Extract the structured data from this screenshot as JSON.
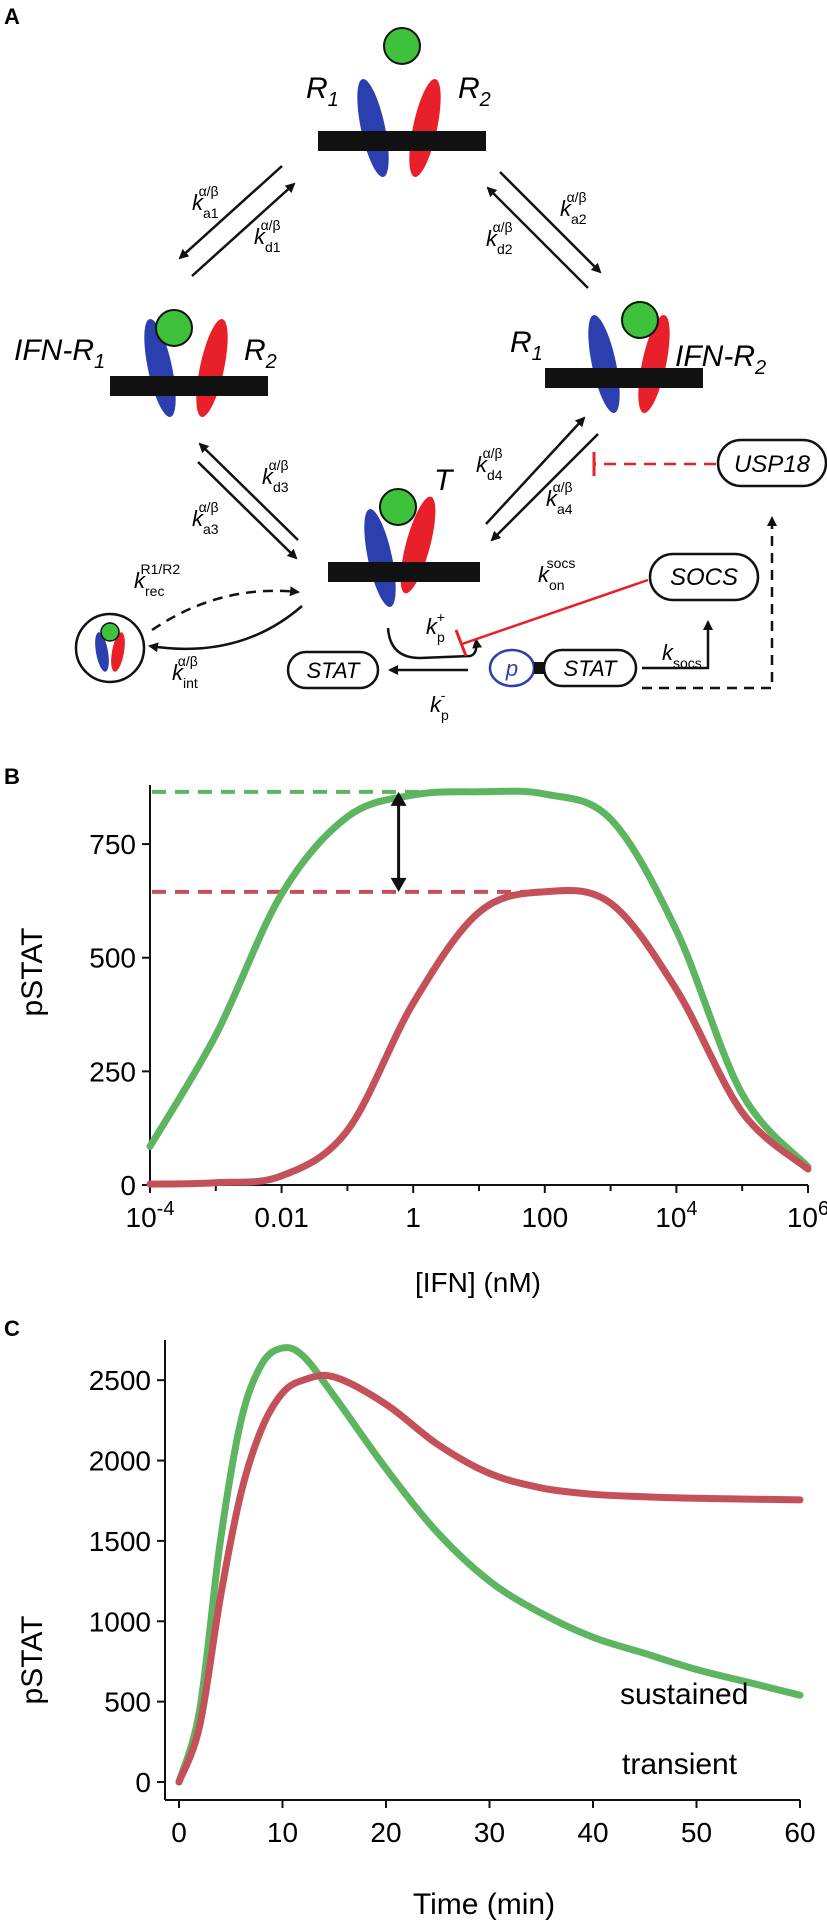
{
  "panel_a": {
    "letter": "A",
    "labels": {
      "r1_top": "R",
      "r1_top_sub": "1",
      "r2_top": "R",
      "r2_top_sub": "2",
      "ifn_r1": "IFN-R",
      "ifn_r1_sub": "1",
      "r2_left": "R",
      "r2_left_sub": "2",
      "r1_right": "R",
      "r1_right_sub": "1",
      "ifn_r2": "IFN-R",
      "ifn_r2_sub": "2",
      "t": "T"
    },
    "rates": {
      "ka1": "k",
      "ka1_sub": "a1",
      "ka1_sup": "α/β",
      "kd1": "k",
      "kd1_sub": "d1",
      "kd1_sup": "α/β",
      "ka2": "k",
      "ka2_sub": "a2",
      "ka2_sup": "α/β",
      "kd2": "k",
      "kd2_sub": "d2",
      "kd2_sup": "α/β",
      "kd3": "k",
      "kd3_sub": "d3",
      "kd3_sup": "α/β",
      "ka3": "k",
      "ka3_sub": "a3",
      "ka3_sup": "α/β",
      "kd4": "k",
      "kd4_sub": "d4",
      "kd4_sup": "α/β",
      "ka4": "k",
      "ka4_sub": "a4",
      "ka4_sup": "α/β",
      "krec": "k",
      "krec_sub": "rec",
      "krec_sup": "R1/R2",
      "kint": "k",
      "kint_sub": "int",
      "kint_sup": "α/β",
      "kon": "k",
      "kon_sub": "on",
      "kon_sup": "socs",
      "kp_plus": "k",
      "kp_plus_sub": "p",
      "kp_plus_sup": "+",
      "kp_minus": "k",
      "kp_minus_sub": "p",
      "kp_minus_sup": "-",
      "ksocs": "k",
      "ksocs_sub": "socs"
    },
    "boxes": {
      "usp18": "USP18",
      "socs": "SOCS",
      "stat_left": "STAT",
      "stat_right": "STAT",
      "p": "p"
    },
    "colors": {
      "r1": "#2c3fae",
      "r2": "#e8202a",
      "ifn": "#3ec23c",
      "membrane": "#111111",
      "inhibit": "#e8202a"
    }
  },
  "panel_b": {
    "letter": "B",
    "ylabel": "pSTAT",
    "xlabel": "[IFN] (nM)",
    "yticks": [
      "0",
      "250",
      "500",
      "750"
    ],
    "xticks": [
      {
        "base": "10",
        "exp": "-4"
      },
      {
        "base": "0.01",
        "exp": ""
      },
      {
        "base": "1",
        "exp": ""
      },
      {
        "base": "100",
        "exp": ""
      },
      {
        "base": "10",
        "exp": "4"
      },
      {
        "base": "10",
        "exp": "6"
      }
    ]
  },
  "panel_c": {
    "letter": "C",
    "ylabel": "pSTAT",
    "xlabel": "Time (min)",
    "yticks": [
      "0",
      "500",
      "1000",
      "1500",
      "2000",
      "2500"
    ],
    "xticks": [
      "0",
      "10",
      "20",
      "30",
      "40",
      "50",
      "60"
    ],
    "label_sustained": "sustained",
    "label_transient": "transient"
  },
  "chart_data": [
    {
      "type": "line",
      "panel": "B",
      "title": "",
      "xlabel": "[IFN] (nM)",
      "ylabel": "pSTAT",
      "xscale": "log",
      "xlim": [
        0.0001,
        1000000
      ],
      "ylim": [
        0,
        880
      ],
      "grid": false,
      "colors": {
        "green": "#5db561",
        "red": "#c4515a"
      },
      "series": [
        {
          "color": "green",
          "x": [
            0.0001,
            0.001,
            0.01,
            0.1,
            1,
            10,
            100,
            1000,
            10000,
            100000,
            1000000
          ],
          "y": [
            85,
            330,
            640,
            810,
            858,
            865,
            860,
            805,
            560,
            200,
            40
          ]
        },
        {
          "color": "red",
          "x": [
            0.0001,
            0.001,
            0.01,
            0.1,
            1,
            10,
            100,
            1000,
            10000,
            100000,
            1000000
          ],
          "y": [
            2,
            5,
            20,
            120,
            400,
            600,
            645,
            620,
            430,
            160,
            35
          ]
        }
      ],
      "reference_lines": [
        {
          "color": "green",
          "y": 865
        },
        {
          "color": "red",
          "y": 645
        }
      ]
    },
    {
      "type": "line",
      "panel": "C",
      "title": "",
      "xlabel": "Time (min)",
      "ylabel": "pSTAT",
      "xlim": [
        0,
        60
      ],
      "ylim": [
        0,
        2750
      ],
      "grid": false,
      "series": [
        {
          "name": "transient",
          "color": "#5db561",
          "x": [
            0,
            2,
            4,
            6,
            8,
            10,
            12,
            15,
            20,
            25,
            30,
            35,
            40,
            45,
            50,
            55,
            60
          ],
          "y": [
            0,
            450,
            1500,
            2250,
            2600,
            2700,
            2650,
            2400,
            1950,
            1550,
            1250,
            1050,
            900,
            800,
            700,
            620,
            540
          ]
        },
        {
          "name": "sustained",
          "color": "#c4515a",
          "x": [
            0,
            2,
            4,
            6,
            8,
            10,
            12,
            15,
            20,
            25,
            30,
            35,
            40,
            45,
            50,
            55,
            60
          ],
          "y": [
            0,
            350,
            1150,
            1800,
            2200,
            2420,
            2500,
            2520,
            2350,
            2100,
            1920,
            1830,
            1790,
            1775,
            1765,
            1760,
            1755
          ]
        }
      ]
    }
  ]
}
